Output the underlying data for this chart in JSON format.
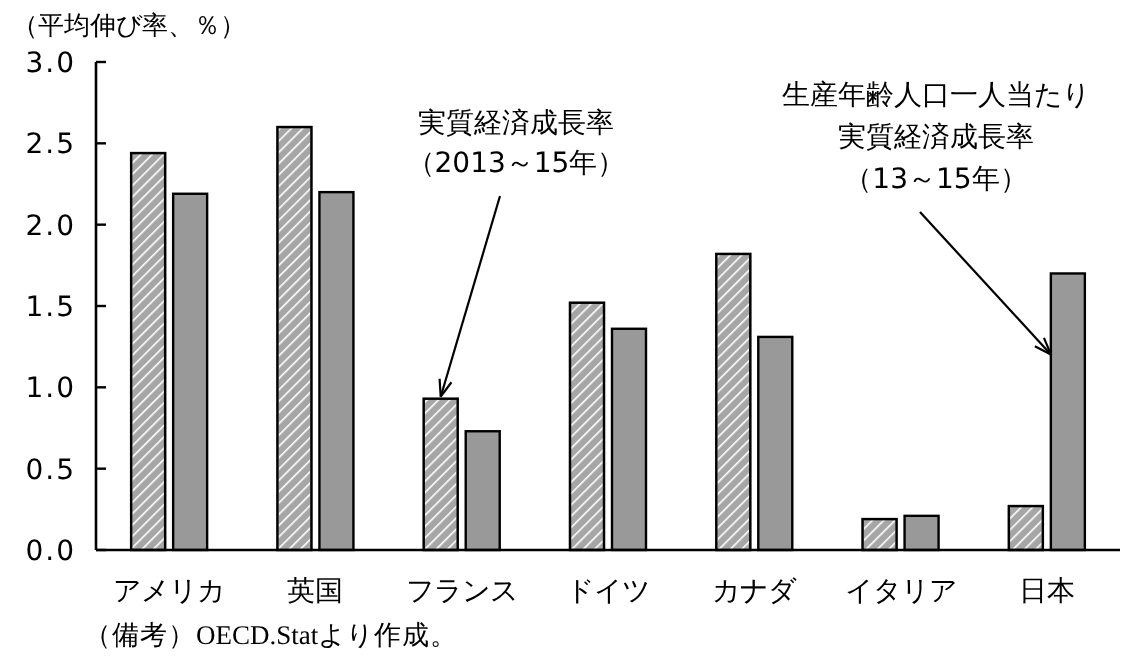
{
  "chart_data": {
    "type": "bar",
    "ylabel": "（平均伸び率、％）",
    "categories": [
      "アメリカ",
      "英国",
      "フランス",
      "ドイツ",
      "カナダ",
      "イタリア",
      "日本"
    ],
    "series": [
      {
        "name": "実質経済成長率（2013～15年）",
        "color": "#a6a6a6",
        "values": [
          2.44,
          2.6,
          0.93,
          1.52,
          1.82,
          0.19,
          0.27
        ]
      },
      {
        "name": "生産年齢人口一人当たり実質経済成長率（13～15年）",
        "color": "#999999",
        "values": [
          2.19,
          2.2,
          0.73,
          1.36,
          1.31,
          0.21,
          1.7
        ]
      }
    ],
    "ylim": [
      0,
      3
    ],
    "yticks": [
      {
        "value": 0,
        "label": "0.0"
      },
      {
        "value": 0.5,
        "label": "0.5"
      },
      {
        "value": 1,
        "label": "1.0"
      },
      {
        "value": 1.5,
        "label": "1.5"
      },
      {
        "value": 2,
        "label": "2.0"
      },
      {
        "value": 2.5,
        "label": "2.5"
      },
      {
        "value": 3,
        "label": "3.0"
      }
    ],
    "annotations": [
      "（備考）OECD.Statより作成。"
    ]
  }
}
